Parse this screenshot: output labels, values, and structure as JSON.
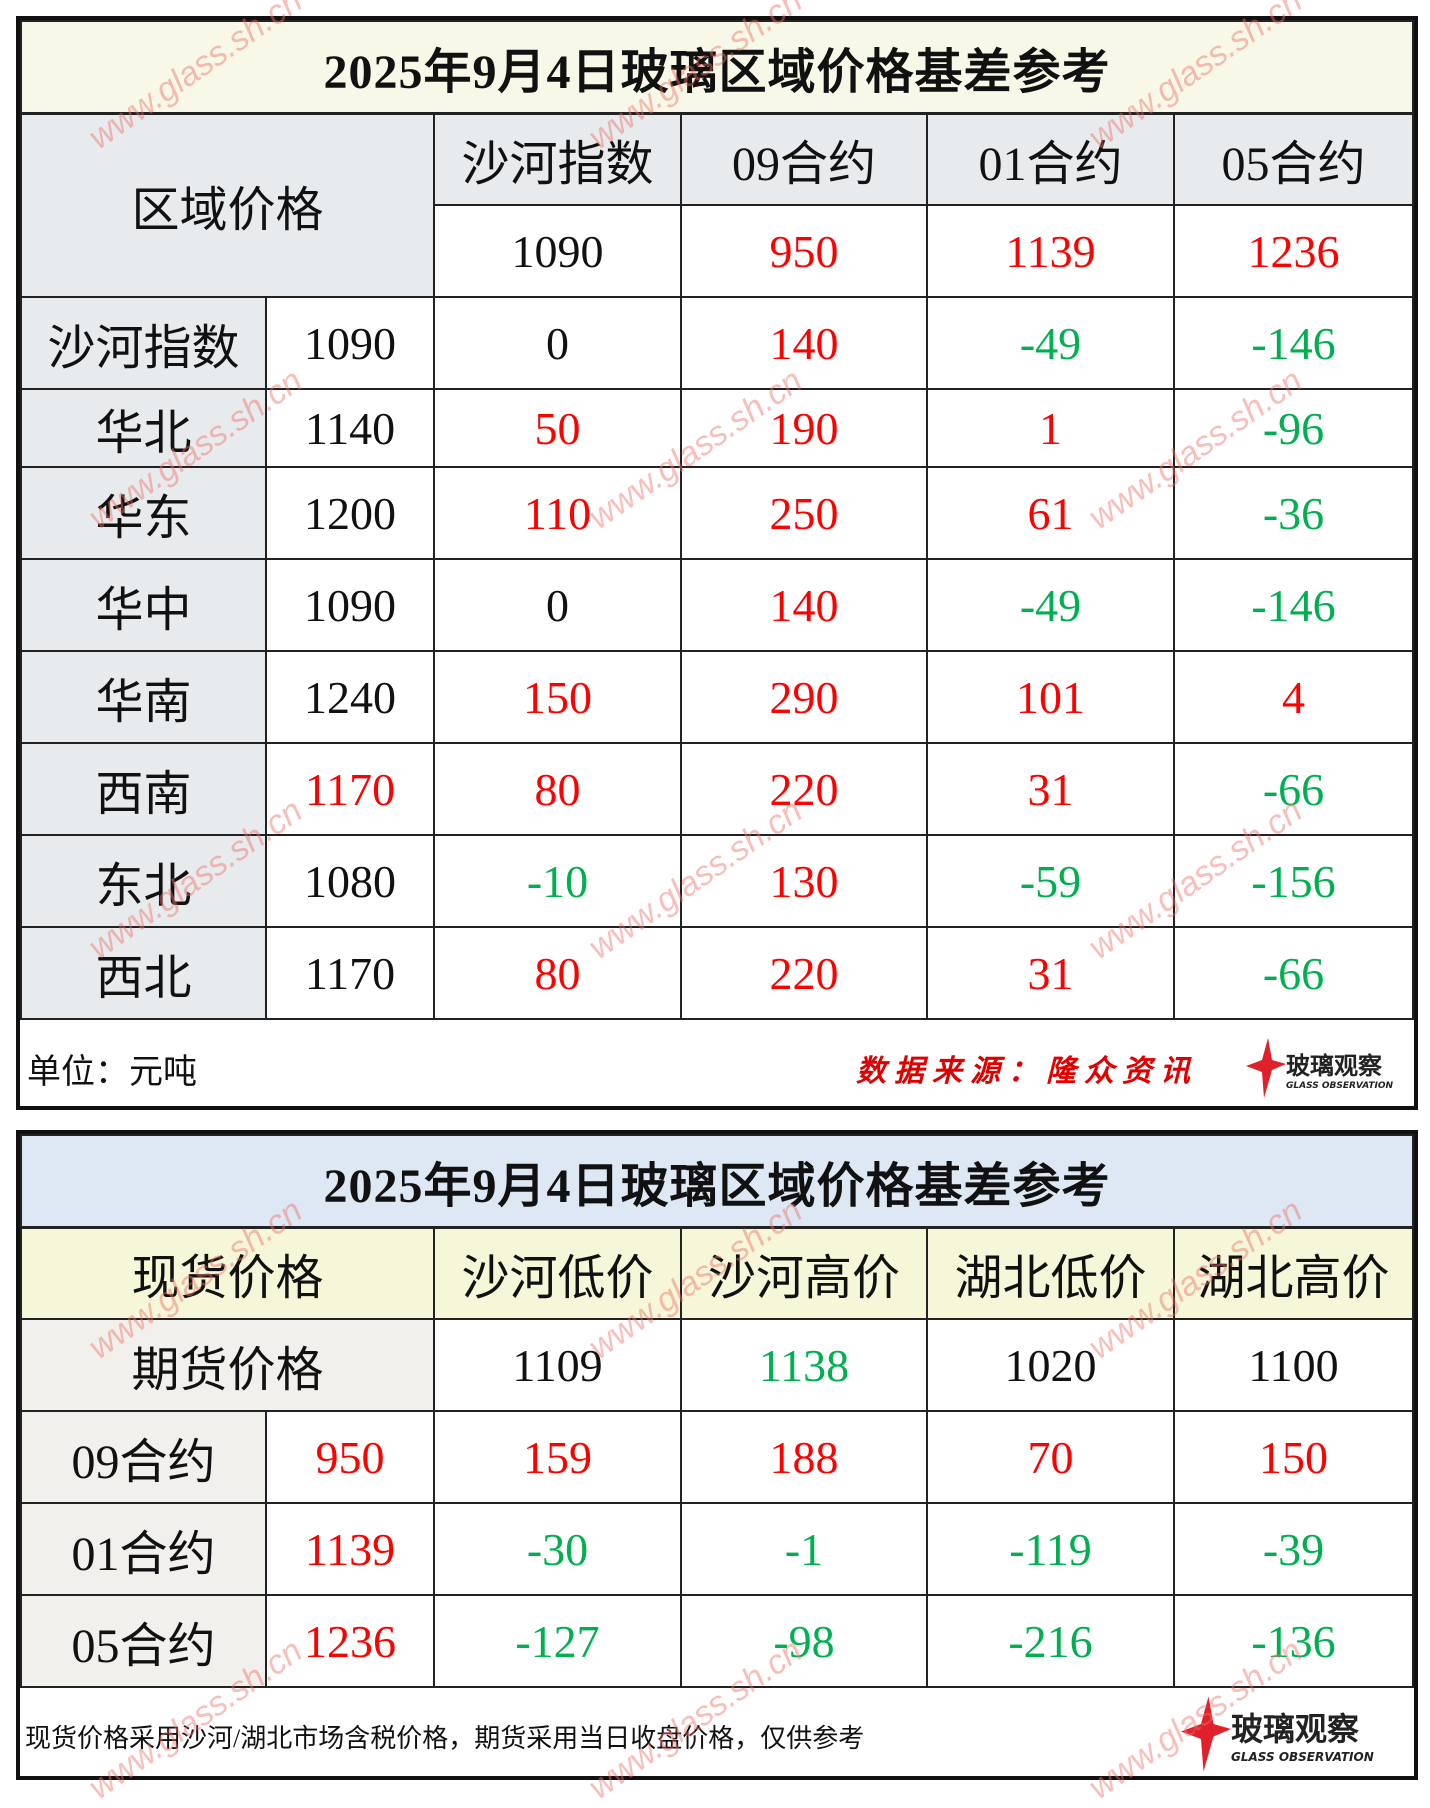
{
  "table1": {
    "title": "2025年9月4日玻璃区域价格基差参考",
    "corner_label": "区域价格",
    "columns": [
      "沙河指数",
      "09合约",
      "01合约",
      "05合约"
    ],
    "reference": [
      {
        "v": "1090",
        "tone": "black"
      },
      {
        "v": "950",
        "tone": "red"
      },
      {
        "v": "1139",
        "tone": "red"
      },
      {
        "v": "1236",
        "tone": "red"
      }
    ],
    "rows": [
      {
        "region": "沙河指数",
        "price": {
          "v": "1090",
          "tone": "black"
        },
        "values": [
          {
            "v": "0",
            "tone": "black"
          },
          {
            "v": "140",
            "tone": "red"
          },
          {
            "v": "-49",
            "tone": "green"
          },
          {
            "v": "-146",
            "tone": "green"
          }
        ]
      },
      {
        "region": "华北",
        "price": {
          "v": "1140",
          "tone": "black"
        },
        "values": [
          {
            "v": "50",
            "tone": "red"
          },
          {
            "v": "190",
            "tone": "red"
          },
          {
            "v": "1",
            "tone": "red"
          },
          {
            "v": "-96",
            "tone": "green"
          }
        ]
      },
      {
        "region": "华东",
        "price": {
          "v": "1200",
          "tone": "black"
        },
        "values": [
          {
            "v": "110",
            "tone": "red"
          },
          {
            "v": "250",
            "tone": "red"
          },
          {
            "v": "61",
            "tone": "red"
          },
          {
            "v": "-36",
            "tone": "green"
          }
        ]
      },
      {
        "region": "华中",
        "price": {
          "v": "1090",
          "tone": "black"
        },
        "values": [
          {
            "v": "0",
            "tone": "black"
          },
          {
            "v": "140",
            "tone": "red"
          },
          {
            "v": "-49",
            "tone": "green"
          },
          {
            "v": "-146",
            "tone": "green"
          }
        ]
      },
      {
        "region": "华南",
        "price": {
          "v": "1240",
          "tone": "black"
        },
        "values": [
          {
            "v": "150",
            "tone": "red"
          },
          {
            "v": "290",
            "tone": "red"
          },
          {
            "v": "101",
            "tone": "red"
          },
          {
            "v": "4",
            "tone": "red"
          }
        ]
      },
      {
        "region": "西南",
        "price": {
          "v": "1170",
          "tone": "red"
        },
        "values": [
          {
            "v": "80",
            "tone": "red"
          },
          {
            "v": "220",
            "tone": "red"
          },
          {
            "v": "31",
            "tone": "red"
          },
          {
            "v": "-66",
            "tone": "green"
          }
        ]
      },
      {
        "region": "东北",
        "price": {
          "v": "1080",
          "tone": "black"
        },
        "values": [
          {
            "v": "-10",
            "tone": "green"
          },
          {
            "v": "130",
            "tone": "red"
          },
          {
            "v": "-59",
            "tone": "green"
          },
          {
            "v": "-156",
            "tone": "green"
          }
        ]
      },
      {
        "region": "西北",
        "price": {
          "v": "1170",
          "tone": "black"
        },
        "values": [
          {
            "v": "80",
            "tone": "red"
          },
          {
            "v": "220",
            "tone": "red"
          },
          {
            "v": "31",
            "tone": "red"
          },
          {
            "v": "-66",
            "tone": "green"
          }
        ]
      }
    ],
    "unit": "单位：元吨",
    "source": "数据来源：隆众资讯"
  },
  "table2": {
    "title": "2025年9月4日玻璃区域价格基差参考",
    "spot_label": "现货价格",
    "futures_label": "期货价格",
    "columns": [
      "沙河低价",
      "沙河高价",
      "湖北低价",
      "湖北高价"
    ],
    "spot": [
      {
        "v": "1109",
        "tone": "black"
      },
      {
        "v": "1138",
        "tone": "green"
      },
      {
        "v": "1020",
        "tone": "black"
      },
      {
        "v": "1100",
        "tone": "black"
      }
    ],
    "rows": [
      {
        "contract": "09合约",
        "price": {
          "v": "950",
          "tone": "red"
        },
        "values": [
          {
            "v": "159",
            "tone": "red"
          },
          {
            "v": "188",
            "tone": "red"
          },
          {
            "v": "70",
            "tone": "red"
          },
          {
            "v": "150",
            "tone": "red"
          }
        ]
      },
      {
        "contract": "01合约",
        "price": {
          "v": "1139",
          "tone": "red"
        },
        "values": [
          {
            "v": "-30",
            "tone": "green"
          },
          {
            "v": "-1",
            "tone": "green"
          },
          {
            "v": "-119",
            "tone": "green"
          },
          {
            "v": "-39",
            "tone": "green"
          }
        ]
      },
      {
        "contract": "05合约",
        "price": {
          "v": "1236",
          "tone": "red"
        },
        "values": [
          {
            "v": "-127",
            "tone": "green"
          },
          {
            "v": "-98",
            "tone": "green"
          },
          {
            "v": "-216",
            "tone": "green"
          },
          {
            "v": "-136",
            "tone": "green"
          }
        ]
      }
    ],
    "note": "现货价格采用沙河/湖北市场含税价格，期货采用当日收盘价格，仅供参考"
  },
  "logo": {
    "name": "玻璃观察",
    "subtitle": "GLASS OBSERVATION"
  },
  "watermark": "www.glass.sh.cn",
  "colors": {
    "positive": "#ff0000",
    "negative": "#00b050",
    "title1_bg": "#f8f8e8",
    "title2_bg": "#dde8f4",
    "header_bg": "#e8ebee",
    "header2_bg": "#f6f6d8"
  }
}
